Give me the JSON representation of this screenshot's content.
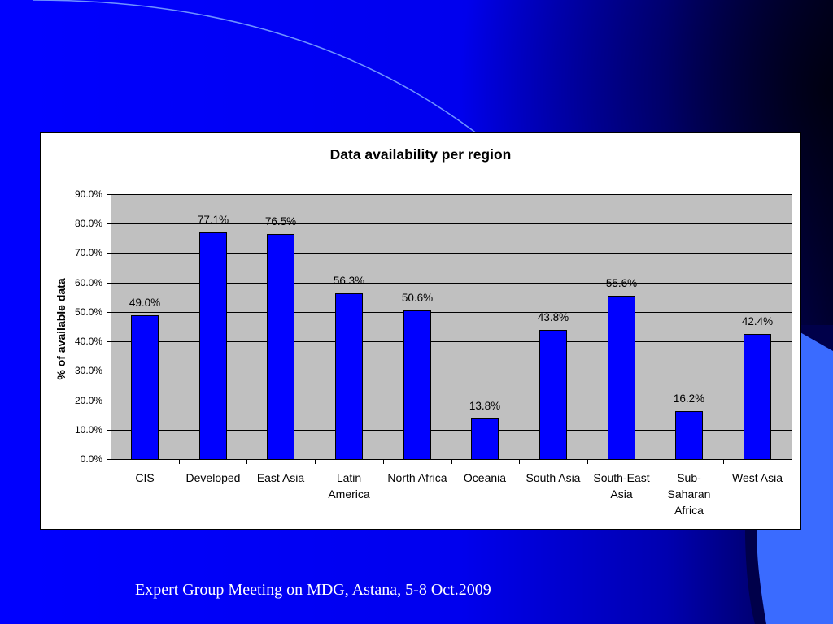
{
  "theme": {
    "background_left": "#0000ff",
    "background_mid": "#0000ee",
    "background_dark": "#0000b0",
    "background_right": "#000040",
    "corner_shade": "#000000",
    "arc_color": "#6f93ff",
    "accent_shape": "#3a6bff",
    "accent_edge": "#00004a"
  },
  "slide": {
    "footer": "Expert Group Meeting on MDG, Astana, 5-8 Oct.2009"
  },
  "chart_data": {
    "type": "bar",
    "title": "Data availability per region",
    "ylabel": "% of available data",
    "categories": [
      "CIS",
      "Developed",
      "East Asia",
      "Latin America",
      "North Africa",
      "Oceania",
      "South Asia",
      "South-East Asia",
      "Sub-Saharan Africa",
      "West Asia"
    ],
    "values": [
      49.0,
      77.1,
      76.5,
      56.3,
      50.6,
      13.8,
      43.8,
      55.6,
      16.2,
      42.4
    ],
    "data_labels": [
      "49.0%",
      "77.1%",
      "76.5%",
      "56.3%",
      "50.6%",
      "13.8%",
      "43.8%",
      "55.6%",
      "16.2%",
      "42.4%"
    ],
    "ylim": [
      0,
      90
    ],
    "yticks": [
      0,
      10,
      20,
      30,
      40,
      50,
      60,
      70,
      80,
      90
    ],
    "ytick_labels": [
      "0.0%",
      "10.0%",
      "20.0%",
      "30.0%",
      "40.0%",
      "50.0%",
      "60.0%",
      "70.0%",
      "80.0%",
      "90.0%"
    ],
    "grid": true,
    "legend": "none",
    "bar_color": "#0000ff",
    "bar_edge_color": "#000000",
    "plot_background": "#c0c0c0",
    "gridline_color": "#000000"
  }
}
